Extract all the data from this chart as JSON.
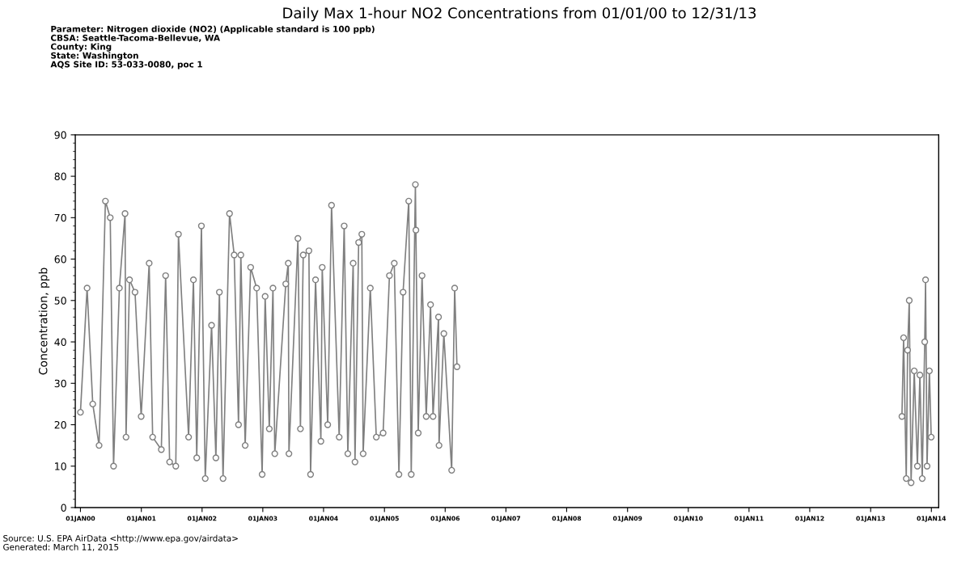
{
  "chart_data": {
    "type": "line",
    "title": "Daily Max 1-hour NO2 Concentrations from 01/01/00 to 12/31/13",
    "subtitle": "Parameter: Nitrogen dioxide (NO2) (Applicable standard is 100 ppb)\nCBSA: Seattle-Tacoma-Bellevue, WA\nCounty: King\nState: Washington\nAQS Site ID: 53-033-0080, poc 1",
    "ylabel": "Concentration, ppb",
    "annotations": [
      "Source: U.S. EPA AirData <http://www.epa.gov/airdata>\nGenerated: March 11, 2015"
    ],
    "series": [
      {
        "color": "#808080",
        "x": [
          "2000-01-01",
          "2000-02-10",
          "2000-03-15",
          "2000-04-22",
          "2000-05-30",
          "2000-06-28",
          "2000-07-18",
          "2000-08-22",
          "2000-09-25",
          "2000-10-01",
          "2000-10-22",
          "2000-11-24",
          "2000-12-31",
          "2001-02-17",
          "2001-03-10",
          "2001-05-01",
          "2001-05-27",
          "2001-06-20",
          "2001-07-27",
          "2001-08-12",
          "2001-10-12",
          "2001-11-10",
          "2001-11-30",
          "2001-12-28",
          "2002-01-20",
          "2002-02-27",
          "2002-03-25",
          "2002-04-15",
          "2002-05-07",
          "2002-06-15",
          "2002-07-13",
          "2002-08-08",
          "2002-08-22",
          "2002-09-17",
          "2002-10-20",
          "2002-11-25",
          "2002-12-28",
          "2003-01-15",
          "2003-02-09",
          "2003-03-03",
          "2003-03-14",
          "2003-05-19",
          "2003-06-03",
          "2003-06-07",
          "2003-07-31",
          "2003-08-15",
          "2003-09-01",
          "2003-10-05",
          "2003-10-15",
          "2003-11-14",
          "2003-12-16",
          "2003-12-24",
          "2004-01-26",
          "2004-02-18",
          "2004-04-04",
          "2004-05-04",
          "2004-05-26",
          "2004-06-27",
          "2004-07-08",
          "2004-07-30",
          "2004-08-18",
          "2004-08-26",
          "2004-10-08",
          "2004-11-13",
          "2004-12-24",
          "2005-01-31",
          "2005-03-01",
          "2005-03-29",
          "2005-04-23",
          "2005-05-27",
          "2005-06-11",
          "2005-07-06",
          "2005-07-09",
          "2005-07-23",
          "2005-08-15",
          "2005-09-09",
          "2005-10-05",
          "2005-10-20",
          "2005-11-22",
          "2005-11-25",
          "2005-12-24",
          "2006-02-09",
          "2006-02-27",
          "2006-03-13",
          "2010-01-01",
          "2013-07-08",
          "2013-07-18",
          "2013-08-03",
          "2013-08-11",
          "2013-08-21",
          "2013-09-01",
          "2013-09-20",
          "2013-10-09",
          "2013-10-24",
          "2013-11-07",
          "2013-11-22",
          "2013-11-27",
          "2013-12-06",
          "2013-12-20",
          "2013-12-31"
        ],
        "values": [
          23,
          53,
          25,
          15,
          74,
          70,
          10,
          53,
          71,
          17,
          55,
          52,
          22,
          59,
          17,
          14,
          56,
          11,
          10,
          66,
          17,
          55,
          12,
          68,
          7,
          44,
          12,
          52,
          7,
          71,
          61,
          20,
          61,
          15,
          58,
          53,
          8,
          51,
          19,
          53,
          13,
          54,
          59,
          13,
          65,
          19,
          61,
          62,
          8,
          55,
          16,
          58,
          20,
          73,
          17,
          68,
          13,
          59,
          11,
          64,
          66,
          13,
          53,
          17,
          18,
          56,
          59,
          8,
          52,
          74,
          8,
          78,
          67,
          18,
          56,
          22,
          49,
          22,
          46,
          15,
          42,
          9,
          53,
          34,
          null,
          22,
          41,
          7,
          38,
          50,
          6,
          33,
          10,
          32,
          7,
          40,
          55,
          10,
          33,
          17
        ]
      }
    ],
    "xlim": [
      "1999-12-01",
      "2014-02-14"
    ],
    "xticks": [
      {
        "value": "2000-01-01",
        "label": "01JAN00"
      },
      {
        "value": "2001-01-01",
        "label": "01JAN01"
      },
      {
        "value": "2002-01-01",
        "label": "01JAN02"
      },
      {
        "value": "2003-01-01",
        "label": "01JAN03"
      },
      {
        "value": "2004-01-01",
        "label": "01JAN04"
      },
      {
        "value": "2005-01-01",
        "label": "01JAN05"
      },
      {
        "value": "2006-01-01",
        "label": "01JAN06"
      },
      {
        "value": "2007-01-01",
        "label": "01JAN07"
      },
      {
        "value": "2008-01-01",
        "label": "01JAN08"
      },
      {
        "value": "2009-01-01",
        "label": "01JAN09"
      },
      {
        "value": "2010-01-01",
        "label": "01JAN10"
      },
      {
        "value": "2011-01-01",
        "label": "01JAN11"
      },
      {
        "value": "2012-01-01",
        "label": "01JAN12"
      },
      {
        "value": "2013-01-01",
        "label": "01JAN13"
      },
      {
        "value": "2014-01-01",
        "label": "01JAN14"
      }
    ],
    "ylim": [
      0,
      90
    ],
    "yticks": [
      0,
      10,
      20,
      30,
      40,
      50,
      60,
      70,
      80,
      90
    ],
    "marker": "circle",
    "line_style": "solid",
    "grid": false,
    "legend": false
  }
}
